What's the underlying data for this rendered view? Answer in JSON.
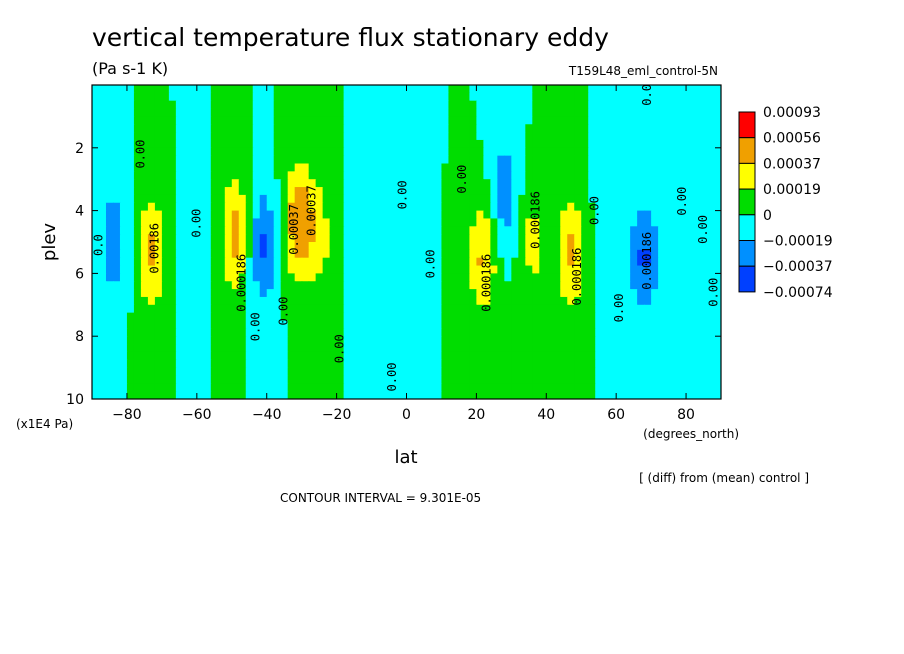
{
  "chart_data": {
    "type": "heatmap",
    "title": "vertical temperature flux stationary eddy",
    "units": "(Pa s-1 K)",
    "run_label": "T159L48_eml_control-5N",
    "xlabel": "lat",
    "x_unit": "(degrees_north)",
    "ylabel": "plev",
    "y_unit": "(x1E4 Pa)",
    "xlim": [
      -90,
      90
    ],
    "ylim": [
      10,
      0
    ],
    "x_ticks": [
      -80,
      -60,
      -40,
      -20,
      0,
      20,
      40,
      60,
      80
    ],
    "y_ticks": [
      2,
      4,
      6,
      8,
      10
    ],
    "diff_note": "[ (diff) from (mean) control ]",
    "contour_interval": "CONTOUR INTERVAL = 9.301E-05",
    "colorbar": {
      "labels": [
        "0.00093",
        "0.00056",
        "0.00037",
        "0.00019",
        "0",
        "-0.00019",
        "-0.00037",
        "-0.00074"
      ],
      "colors": [
        "#ff0000",
        "#f0a000",
        "#ffff00",
        "#00dd00",
        "#00ffff",
        "#0090ff",
        "#0040ff"
      ]
    },
    "features": [
      {
        "lat": -84,
        "plev": 5.0,
        "value": -0.0003
      },
      {
        "lat": -73,
        "plev": 5.3,
        "value": 0.0004
      },
      {
        "lat": -62,
        "plev": 5.0,
        "value": -0.0001
      },
      {
        "lat": -49,
        "plev": 4.8,
        "value": 0.00045
      },
      {
        "lat": -41,
        "plev": 5.2,
        "value": -0.0004
      },
      {
        "lat": -31,
        "plev": 4.3,
        "value": 0.0005
      },
      {
        "lat": -25,
        "plev": 4.8,
        "value": 0.00025
      },
      {
        "lat": -13,
        "plev": 4.8,
        "value": -0.0001
      },
      {
        "lat": 0,
        "plev": 4.5,
        "value": -0.0001
      },
      {
        "lat": 22,
        "plev": 5.5,
        "value": 0.0004
      },
      {
        "lat": 28,
        "plev": 3.5,
        "value": -0.0003
      },
      {
        "lat": 36,
        "plev": 5.0,
        "value": 0.00025
      },
      {
        "lat": 47,
        "plev": 5.3,
        "value": 0.0004
      },
      {
        "lat": 57,
        "plev": 5.0,
        "value": -0.0001
      },
      {
        "lat": 68,
        "plev": 5.5,
        "value": -0.0004
      },
      {
        "lat": 80,
        "plev": 5.0,
        "value": -0.0001
      }
    ],
    "contour_labels": [
      {
        "text": "0.00",
        "lat": -75,
        "plev": 2.2
      },
      {
        "text": "0.0",
        "lat": -87,
        "plev": 5.1
      },
      {
        "text": "0.00186",
        "lat": -71,
        "plev": 5.2
      },
      {
        "text": "0.00",
        "lat": -59,
        "plev": 4.4
      },
      {
        "text": "0.000186",
        "lat": -46,
        "plev": 6.3
      },
      {
        "text": "0.00",
        "lat": -42,
        "plev": 7.7
      },
      {
        "text": "0.00",
        "lat": -34,
        "plev": 7.2
      },
      {
        "text": "0.00037",
        "lat": -31,
        "plev": 4.6
      },
      {
        "text": "0.00037",
        "lat": -26,
        "plev": 4.0
      },
      {
        "text": "0.00",
        "lat": -18,
        "plev": 8.4
      },
      {
        "text": "0.00",
        "lat": 0,
        "plev": 3.5
      },
      {
        "text": "0.00",
        "lat": -3,
        "plev": 9.3
      },
      {
        "text": "0.00",
        "lat": 8,
        "plev": 5.7
      },
      {
        "text": "0.00",
        "lat": 17,
        "plev": 3.0
      },
      {
        "text": "0.000186",
        "lat": 24,
        "plev": 6.3
      },
      {
        "text": "0.000186",
        "lat": 38,
        "plev": 4.3
      },
      {
        "text": "0.000186",
        "lat": 50,
        "plev": 6.1
      },
      {
        "text": "0.00",
        "lat": 55,
        "plev": 4.0
      },
      {
        "text": "0.00",
        "lat": 62,
        "plev": 7.1
      },
      {
        "text": "0.000186",
        "lat": 70,
        "plev": 5.6
      },
      {
        "text": "0.00",
        "lat": 80,
        "plev": 3.7
      },
      {
        "text": "0.00",
        "lat": 86,
        "plev": 4.6
      },
      {
        "text": "0.00",
        "lat": 89,
        "plev": 6.6
      },
      {
        "text": "0.00",
        "lat": 70,
        "plev": 0.2
      }
    ]
  }
}
